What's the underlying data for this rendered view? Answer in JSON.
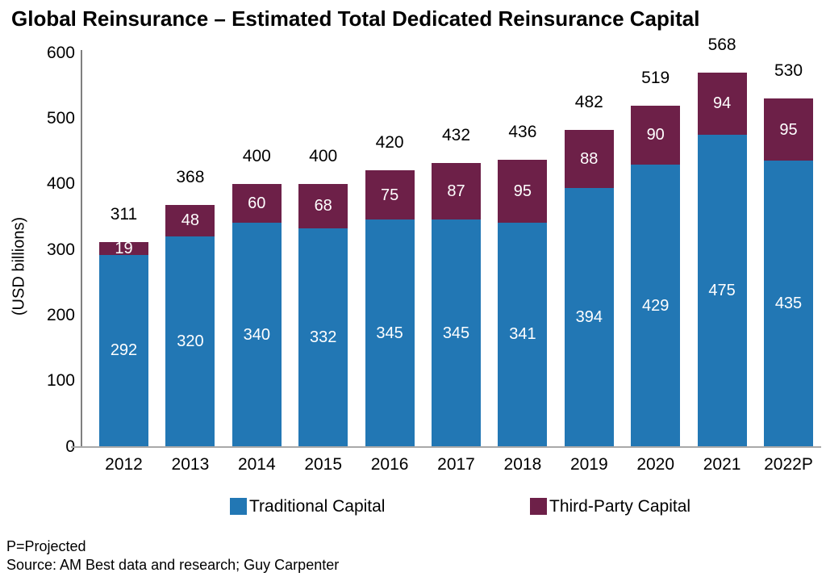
{
  "title": "Global Reinsurance – Estimated Total Dedicated Reinsurance Capital",
  "chart_data": {
    "type": "bar",
    "stacked": true,
    "title": "Global Reinsurance – Estimated Total Dedicated Reinsurance Capital",
    "categories": [
      "2012",
      "2013",
      "2014",
      "2015",
      "2016",
      "2017",
      "2018",
      "2019",
      "2020",
      "2021",
      "2022P"
    ],
    "series": [
      {
        "name": "Traditional Capital",
        "color": "#2277B4",
        "values": [
          292,
          320,
          340,
          332,
          345,
          345,
          341,
          394,
          429,
          475,
          435
        ]
      },
      {
        "name": "Third-Party Capital",
        "color": "#6D2048",
        "values": [
          19,
          48,
          60,
          68,
          75,
          87,
          95,
          88,
          90,
          94,
          95
        ]
      }
    ],
    "totals": [
      311,
      368,
      400,
      400,
      420,
      432,
      436,
      482,
      519,
      568,
      530
    ],
    "xlabel": "",
    "ylabel": "(USD billions)",
    "ylim": [
      0,
      600
    ],
    "yticks": [
      0,
      100,
      200,
      300,
      400,
      500,
      600
    ],
    "grid": false,
    "legend_position": "bottom"
  },
  "legend": {
    "items": [
      {
        "label": "Traditional Capital",
        "color": "#2277B4"
      },
      {
        "label": "Third-Party Capital",
        "color": "#6D2048"
      }
    ]
  },
  "footer": {
    "note": "P=Projected",
    "source": "Source: AM Best data and research; Guy Carpenter"
  },
  "colors": {
    "traditional": "#2277B4",
    "third_party": "#6D2048",
    "y_axis_line": "#7F7F7F",
    "x_axis_line": "#A9A9A9",
    "bar_label_text": "#FFFFFF"
  }
}
